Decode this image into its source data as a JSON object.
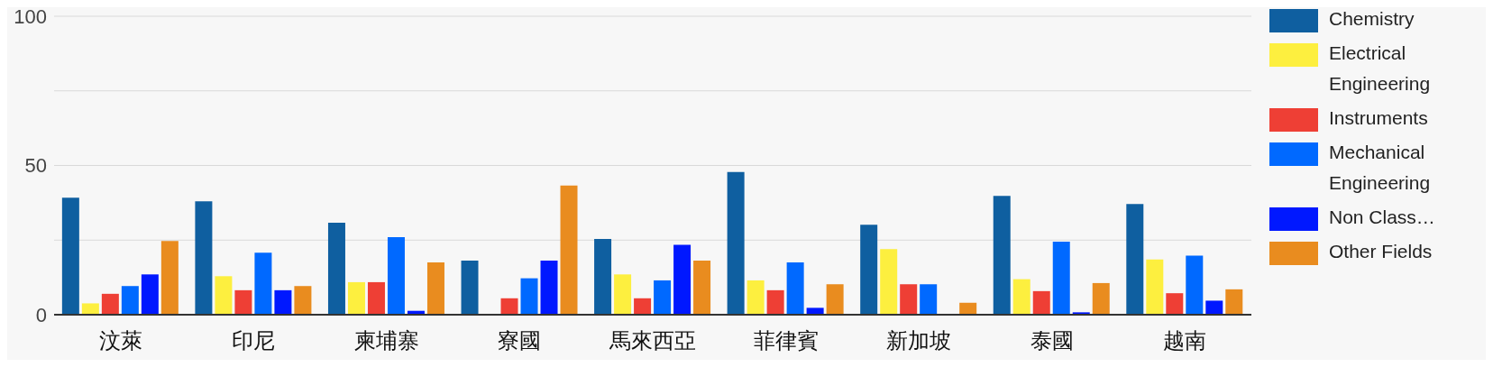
{
  "chart_data": {
    "type": "bar",
    "categories": [
      "汶萊",
      "印尼",
      "柬埔寨",
      "寮國",
      "馬來西亞",
      "菲律賓",
      "新加坡",
      "泰國",
      "越南"
    ],
    "series": [
      {
        "name": "Chemistry",
        "color": "#0f5fa0",
        "values": [
          39.2,
          38.0,
          30.8,
          18.1,
          25.4,
          47.8,
          30.1,
          39.8,
          37.1
        ]
      },
      {
        "name": "Electrical Engineering",
        "color": "#fdef3f",
        "values": [
          3.8,
          12.9,
          10.9,
          0,
          13.5,
          11.5,
          22.0,
          11.9,
          18.5
        ]
      },
      {
        "name": "Instruments",
        "color": "#ee3f35",
        "values": [
          7.0,
          8.2,
          10.9,
          5.5,
          5.5,
          8.2,
          10.2,
          7.9,
          7.2
        ]
      },
      {
        "name": "Mechanical Engineering",
        "color": "#0069ff",
        "values": [
          9.6,
          20.8,
          26.0,
          12.2,
          11.5,
          17.5,
          10.2,
          24.5,
          19.8
        ]
      },
      {
        "name": "Non Class…",
        "color": "#0018ff",
        "values": [
          13.5,
          8.2,
          1.3,
          18.1,
          23.4,
          2.3,
          0,
          0.8,
          4.7
        ]
      },
      {
        "name": "Other Fields",
        "color": "#e98c1f",
        "values": [
          24.7,
          9.6,
          17.5,
          43.3,
          18.1,
          10.2,
          4.0,
          10.6,
          8.5
        ]
      }
    ],
    "ylim": [
      0,
      100
    ],
    "yticks": [
      0,
      {
        "value": 25,
        "label": null
      },
      50,
      {
        "value": 75,
        "label": null
      },
      100
    ],
    "grid": "y",
    "legend": "right"
  }
}
